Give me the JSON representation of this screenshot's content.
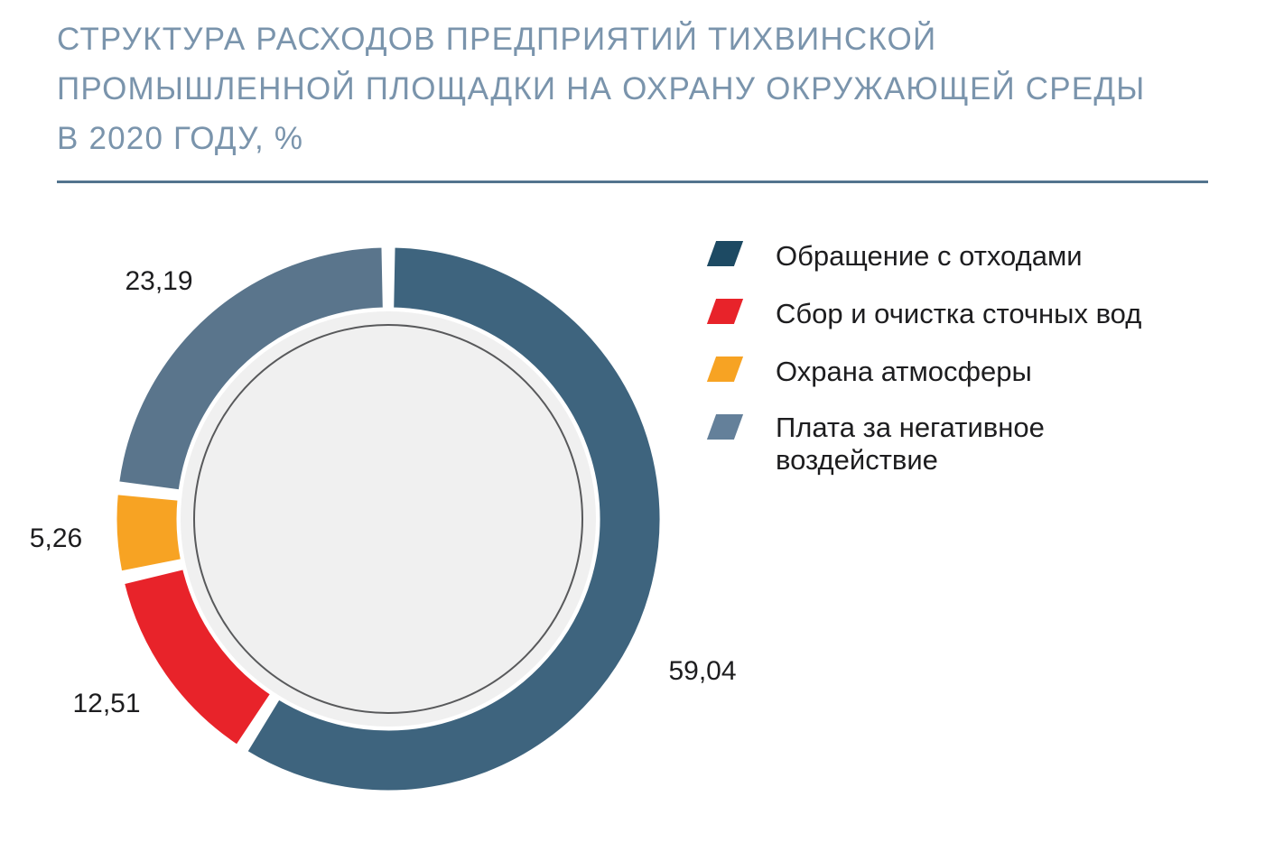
{
  "title": {
    "full": "СТРУКТУРА РАСХОДОВ ПРЕДПРИЯТИЙ ТИХВИНСКОЙ ПРОМЫШЛЕННОЙ ПЛОЩАДКИ НА ОХРАНУ ОКРУЖАЮЩЕЙ СРЕДЫ В 2020 ГОДУ, %",
    "lines": [
      "СТРУКТУРА РАСХОДОВ ПРЕДПРИЯТИЙ ТИХВИНСКОЙ",
      "ПРОМЫШЛЕННОЙ ПЛОЩАДКИ НА ОХРАНУ ОКРУЖАЮЩЕЙ СРЕДЫ",
      "В 2020 ГОДУ, %"
    ]
  },
  "chart_data": {
    "type": "pie",
    "subtype": "donut",
    "unit": "%",
    "start_angle_deg": 0,
    "direction": "clockwise",
    "legend_position": "right",
    "slices": [
      {
        "label": "Обращение с отходами",
        "value": 59.04,
        "display": "59,04",
        "color": "#3E647E",
        "legend_color": "#1D4A63"
      },
      {
        "label": "Сбор и очистка сточных вод",
        "value": 12.51,
        "display": "12,51",
        "color": "#E8232A",
        "legend_color": "#E8232A"
      },
      {
        "label": "Охрана атмосферы",
        "value": 5.26,
        "display": "5,26",
        "color": "#F7A323",
        "legend_color": "#F7A323"
      },
      {
        "label": "Плата за негативное воздействие",
        "value": 23.19,
        "display": "23,19",
        "color": "#5A758C",
        "legend_color": "#64809A"
      }
    ]
  },
  "colors": {
    "background": "#FFFFFF",
    "title_text": "#7A94AC",
    "title_rule": "#53748E",
    "slice_label_text": "#1D1D1F",
    "inner_disc": "#F0F0F0",
    "inner_circle_line": "#58595B"
  }
}
